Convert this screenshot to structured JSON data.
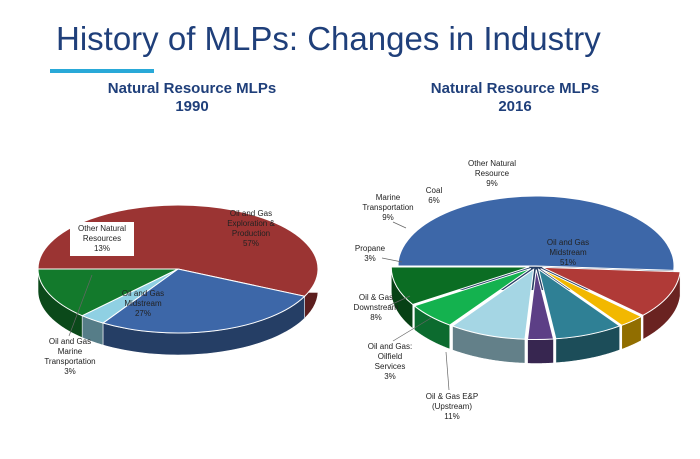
{
  "header": {
    "title": "History of MLPs:  Changes in Industry",
    "accent_color": "#29a9d8"
  },
  "chart_data": [
    {
      "type": "pie",
      "title_line1": "Natural Resource MLPs",
      "title_line2": "1990",
      "slices": [
        {
          "label_lines": [
            "Oil and Gas",
            "Exploration &",
            "Production"
          ],
          "percent_label": "57%",
          "value": 57,
          "color": "#9b3433"
        },
        {
          "label_lines": [
            "Oil and Gas",
            "Midstream"
          ],
          "percent_label": "27%",
          "value": 27,
          "color": "#3d67a8"
        },
        {
          "label_lines": [
            "Oil and Gas",
            "Marine",
            "Transportation"
          ],
          "percent_label": "3%",
          "value": 3,
          "color": "#8fd0e3"
        },
        {
          "label_lines": [
            "Other Natural",
            "Resources"
          ],
          "percent_label": "13%",
          "value": 13,
          "color": "#137a2c"
        }
      ]
    },
    {
      "type": "pie",
      "title_line1": "Natural Resource MLPs",
      "title_line2": "2016",
      "slices": [
        {
          "label_lines": [
            "Oil and Gas",
            "Midstream"
          ],
          "percent_label": "51%",
          "value": 51,
          "color": "#3d67a8"
        },
        {
          "label_lines": [
            "Oil & Gas E&P",
            "(Upstream)"
          ],
          "percent_label": "11%",
          "value": 11,
          "color": "#b03a37"
        },
        {
          "label_lines": [
            "Oil and Gas:",
            "Oilfield",
            "Services"
          ],
          "percent_label": "3%",
          "value": 3,
          "color": "#f2b800"
        },
        {
          "label_lines": [
            "Oil & Gas",
            "Downstream"
          ],
          "percent_label": "8%",
          "value": 8,
          "color": "#2f8095"
        },
        {
          "label_lines": [
            "Propane"
          ],
          "percent_label": "3%",
          "value": 3,
          "color": "#5c3f86"
        },
        {
          "label_lines": [
            "Marine",
            "Transportation"
          ],
          "percent_label": "9%",
          "value": 9,
          "color": "#a5d6e4"
        },
        {
          "label_lines": [
            "Coal"
          ],
          "percent_label": "6%",
          "value": 6,
          "color": "#14b24f"
        },
        {
          "label_lines": [
            "Other Natural",
            "Resource"
          ],
          "percent_label": "9%",
          "value": 9,
          "color": "#0b6d23"
        }
      ]
    }
  ]
}
